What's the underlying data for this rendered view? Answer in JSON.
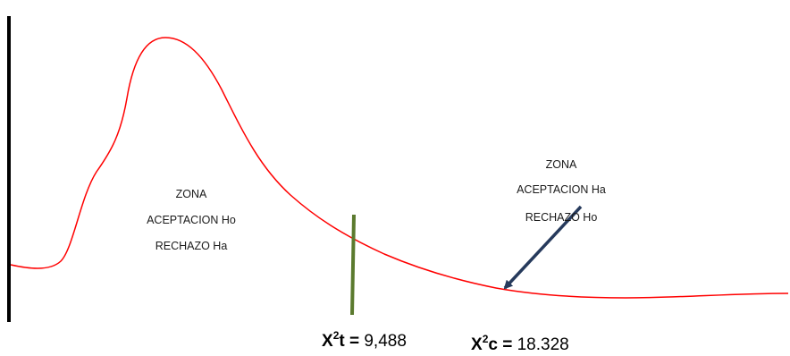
{
  "zones": {
    "left": {
      "line1": "ZONA",
      "line2": "ACEPTACION Ho",
      "line3": "RECHAZO Ha"
    },
    "right": {
      "line1": "ZONA",
      "line2": "ACEPTACION Ha",
      "line3": "RECHAZO Ho"
    }
  },
  "stats": {
    "table": {
      "label_base": "X",
      "label_sup": "2",
      "label_sub": "t",
      "equals": " = ",
      "value": "9,488"
    },
    "calc": {
      "label_base": "X",
      "label_sup": "2",
      "label_sub": "c",
      "equals": " = ",
      "value": "18.328"
    }
  },
  "colors": {
    "curve": "#ff0000",
    "critical_line": "#5b7a2e",
    "arrow": "#263a5c",
    "axis": "#000000"
  }
}
